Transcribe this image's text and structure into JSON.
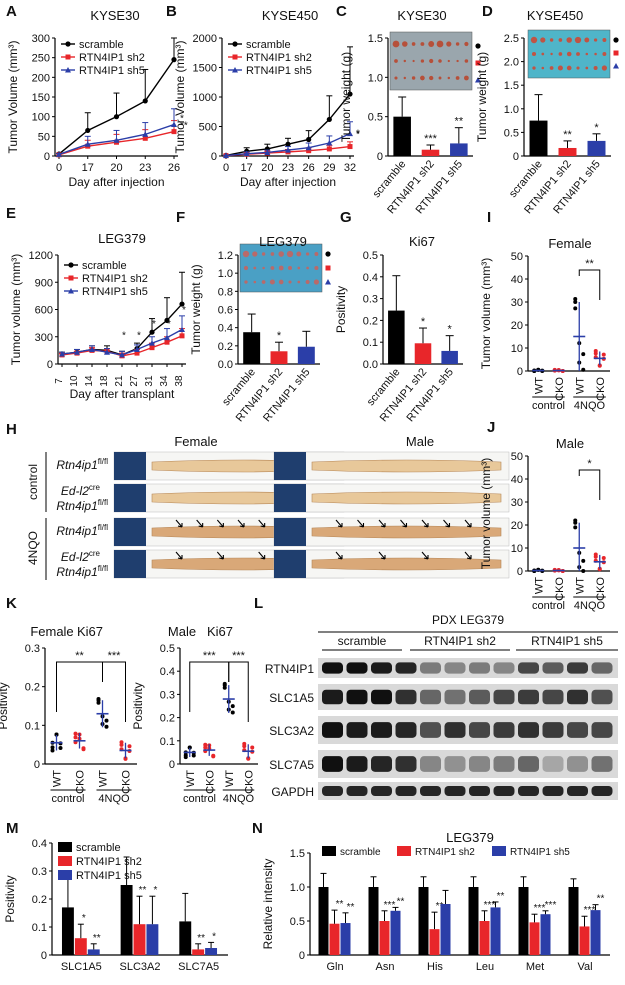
{
  "colors": {
    "black": "#000000",
    "red": "#e8262a",
    "blue": "#2b3ea8",
    "bg_tissue": "#f2f2f2"
  },
  "panels": {
    "A": "A",
    "B": "B",
    "C": "C",
    "D": "D",
    "E": "E",
    "F": "F",
    "G": "G",
    "H": "H",
    "I": "I",
    "J": "J",
    "K": "K",
    "L": "L",
    "M": "M",
    "N": "N"
  },
  "legend": {
    "scramble": "scramble",
    "sh2": "RTN4IP1 sh2",
    "sh5": "RTN4IP1 sh5"
  },
  "h": {
    "female": "Female",
    "male": "Male",
    "control": "control",
    "nqo": "4NQO",
    "flox": "Rtn4ip1",
    "flsup": "fl/fl",
    "edl2": "Ed-l2",
    "cre": "cre"
  },
  "l": {
    "title": "PDX LEG379",
    "groups": [
      "scramble",
      "RTN4IP1 sh2",
      "RTN4IP1 sh5"
    ],
    "proteins": [
      "RTN4IP1",
      "SLC1A5",
      "SLC3A2",
      "SLC7A5",
      "GAPDH"
    ]
  },
  "chart_data": [
    {
      "id": "A",
      "type": "line",
      "title": "KYSE30",
      "xlabel": "Day after injection",
      "ylabel": "Tumor Volume (mm³)",
      "x": [
        0,
        17,
        20,
        23,
        26
      ],
      "ylim": [
        0,
        300
      ],
      "yticks": [
        0,
        50,
        100,
        150,
        200,
        250,
        300
      ],
      "series": [
        {
          "name": "scramble",
          "values": [
            5,
            65,
            100,
            140,
            245
          ],
          "err": [
            2,
            45,
            60,
            80,
            130
          ]
        },
        {
          "name": "RTN4IP1 sh2",
          "values": [
            3,
            25,
            35,
            45,
            62
          ],
          "err": [
            2,
            15,
            20,
            22,
            28
          ]
        },
        {
          "name": "RTN4IP1 sh5",
          "values": [
            4,
            30,
            40,
            55,
            80
          ],
          "err": [
            2,
            20,
            25,
            30,
            40
          ]
        }
      ],
      "stars": [
        "*",
        "**"
      ]
    },
    {
      "id": "B",
      "type": "line",
      "title": "KYSE450",
      "xlabel": "Day after injection",
      "ylabel": "Tumor Volume (mm³)",
      "x": [
        0,
        17,
        20,
        23,
        26,
        29,
        32
      ],
      "ylim": [
        0,
        2000
      ],
      "yticks": [
        0,
        500,
        1000,
        1500,
        2000
      ],
      "series": [
        {
          "name": "scramble",
          "values": [
            10,
            80,
            120,
            200,
            280,
            620,
            1050
          ],
          "err": [
            5,
            60,
            80,
            100,
            150,
            400,
            800
          ]
        },
        {
          "name": "RTN4IP1 sh2",
          "values": [
            5,
            30,
            50,
            70,
            90,
            120,
            160
          ],
          "err": [
            3,
            20,
            30,
            40,
            50,
            60,
            80
          ]
        },
        {
          "name": "RTN4IP1 sh5",
          "values": [
            8,
            40,
            60,
            100,
            140,
            220,
            380
          ],
          "err": [
            4,
            30,
            40,
            60,
            80,
            120,
            200
          ]
        }
      ],
      "stars": [
        "*",
        "*"
      ]
    },
    {
      "id": "C",
      "type": "bar",
      "title": "KYSE30",
      "ylabel": "Tumor weight (g)",
      "ylim": [
        0,
        1.5
      ],
      "yticks": [
        0,
        0.5,
        1.0,
        1.5
      ],
      "categories": [
        "scramble",
        "RTN4IP1 sh2",
        "RTN4IP1 sh5"
      ],
      "values": [
        0.5,
        0.08,
        0.16
      ],
      "err": [
        0.25,
        0.06,
        0.2
      ],
      "stars": [
        "",
        "***",
        "**"
      ]
    },
    {
      "id": "D",
      "type": "bar",
      "title": "KYSE450",
      "ylabel": "Tumor weight (g)",
      "ylim": [
        0,
        2.5
      ],
      "yticks": [
        0,
        0.5,
        1.0,
        1.5,
        2.0,
        2.5
      ],
      "categories": [
        "scramble",
        "RTN4IP1 sh2",
        "RTN4IP1 sh5"
      ],
      "values": [
        0.75,
        0.17,
        0.32
      ],
      "err": [
        0.55,
        0.15,
        0.15
      ],
      "stars": [
        "",
        "**",
        "*"
      ]
    },
    {
      "id": "E",
      "type": "line",
      "title": "LEG379",
      "xlabel": "Day after transplant",
      "ylabel": "Tumor volume (mm³)",
      "x": [
        7,
        10,
        14,
        18,
        21,
        27,
        31,
        34,
        38
      ],
      "ylim": [
        0,
        1200
      ],
      "yticks": [
        0,
        300,
        600,
        900,
        1200
      ],
      "series": [
        {
          "name": "scramble",
          "values": [
            110,
            130,
            160,
            150,
            100,
            170,
            350,
            480,
            660
          ],
          "err": [
            20,
            30,
            40,
            50,
            40,
            60,
            150,
            250,
            350
          ]
        },
        {
          "name": "RTN4IP1 sh2",
          "values": [
            100,
            120,
            150,
            140,
            90,
            120,
            180,
            240,
            310
          ],
          "err": [
            15,
            20,
            30,
            30,
            30,
            40,
            50,
            60,
            80
          ]
        },
        {
          "name": "RTN4IP1 sh5",
          "values": [
            110,
            130,
            160,
            130,
            100,
            160,
            230,
            290,
            380
          ],
          "err": [
            20,
            30,
            40,
            40,
            40,
            50,
            70,
            100,
            150
          ]
        }
      ],
      "stars": [
        "*",
        "*",
        "*",
        "*",
        "*"
      ]
    },
    {
      "id": "F",
      "type": "bar",
      "title": "LEG379",
      "ylabel": "Tumor weight (g)",
      "ylim": [
        0,
        1.2
      ],
      "yticks": [
        0,
        0.2,
        0.4,
        0.6,
        0.8,
        1.0,
        1.2
      ],
      "categories": [
        "scramble",
        "RTN4IP1 sh2",
        "RTN4IP1 sh5"
      ],
      "values": [
        0.35,
        0.14,
        0.19
      ],
      "err": [
        0.2,
        0.1,
        0.17
      ],
      "stars": [
        "",
        "*",
        ""
      ]
    },
    {
      "id": "G",
      "type": "bar",
      "title": "Ki67",
      "ylabel": "Positivity",
      "ylim": [
        0,
        0.5
      ],
      "yticks": [
        0,
        0.1,
        0.2,
        0.3,
        0.4,
        0.5
      ],
      "categories": [
        "scramble",
        "RTN4IP1 sh2",
        "RTN4IP1 sh5"
      ],
      "values": [
        0.245,
        0.095,
        0.06
      ],
      "err": [
        0.16,
        0.07,
        0.07
      ],
      "stars": [
        "",
        "*",
        "*"
      ]
    },
    {
      "id": "I",
      "type": "scatter",
      "title": "Female",
      "ylabel": "Tumor volume (mm³)",
      "ylim": [
        0,
        50
      ],
      "yticks": [
        0,
        10,
        20,
        30,
        40,
        50
      ],
      "categories": [
        "WT",
        "CKO",
        "WT",
        "CKO"
      ],
      "groups": [
        "control",
        "4NQO"
      ],
      "means": [
        0.2,
        0.2,
        15,
        5.5
      ],
      "sd": [
        0.3,
        0.3,
        15,
        3
      ],
      "stars": [
        "**"
      ]
    },
    {
      "id": "J",
      "type": "scatter",
      "title": "Male",
      "ylabel": "Tumor volume (mm³)",
      "ylim": [
        0,
        50
      ],
      "yticks": [
        0,
        10,
        20,
        30,
        40,
        50
      ],
      "categories": [
        "WT",
        "CKO",
        "WT",
        "CKO"
      ],
      "groups": [
        "control",
        "4NQO"
      ],
      "means": [
        0.2,
        0.2,
        10,
        4
      ],
      "sd": [
        0.3,
        0.3,
        11,
        3
      ],
      "stars": [
        "*"
      ]
    },
    {
      "id": "K1",
      "type": "scatter",
      "title": "Ki67",
      "subtitle": "Female",
      "ylabel": "Positivity",
      "ylim": [
        0,
        0.3
      ],
      "yticks": [
        0,
        0.1,
        0.2,
        0.3
      ],
      "categories": [
        "WT",
        "CKO",
        "WT",
        "CKO"
      ],
      "groups": [
        "control",
        "4NQO"
      ],
      "means": [
        0.055,
        0.06,
        0.13,
        0.035
      ],
      "sd": [
        0.02,
        0.02,
        0.035,
        0.02
      ],
      "stars": [
        "**",
        "***"
      ]
    },
    {
      "id": "K2",
      "type": "scatter",
      "title": "Ki67",
      "subtitle": "Male",
      "ylabel": "Positivity",
      "ylim": [
        0,
        0.5
      ],
      "yticks": [
        0,
        0.1,
        0.2,
        0.3,
        0.4,
        0.5
      ],
      "categories": [
        "WT",
        "CKO",
        "WT",
        "CKO"
      ],
      "groups": [
        "control",
        "4NQO"
      ],
      "means": [
        0.05,
        0.06,
        0.28,
        0.055
      ],
      "sd": [
        0.02,
        0.025,
        0.06,
        0.03
      ],
      "stars": [
        "***",
        "***"
      ]
    },
    {
      "id": "M",
      "type": "bar",
      "ylabel": "Positivity",
      "ylim": [
        0,
        0.4
      ],
      "yticks": [
        0,
        0.1,
        0.2,
        0.3,
        0.4
      ],
      "categories": [
        "SLC1A5",
        "SLC3A2",
        "SLC7A5"
      ],
      "series": [
        {
          "name": "scramble",
          "values": [
            0.17,
            0.25,
            0.12
          ],
          "err": [
            0.13,
            0.1,
            0.1
          ]
        },
        {
          "name": "RTN4IP1 sh2",
          "values": [
            0.06,
            0.11,
            0.02
          ],
          "err": [
            0.05,
            0.1,
            0.02
          ]
        },
        {
          "name": "RTN4IP1 sh5",
          "values": [
            0.02,
            0.11,
            0.025
          ],
          "err": [
            0.02,
            0.1,
            0.02
          ]
        }
      ],
      "stars": [
        [
          "*",
          "**"
        ],
        [
          "**",
          "*"
        ],
        [
          "**",
          "*"
        ]
      ]
    },
    {
      "id": "N",
      "type": "bar",
      "title": "LEG379",
      "ylabel": "Relative intensity",
      "ylim": [
        0,
        1.5
      ],
      "yticks": [
        0,
        0.5,
        1.0,
        1.5
      ],
      "categories": [
        "Gln",
        "Asn",
        "His",
        "Leu",
        "Met",
        "Val"
      ],
      "series": [
        {
          "name": "scramble",
          "values": [
            1.0,
            1.0,
            1.0,
            1.0,
            1.0,
            1.0
          ],
          "err": [
            0.2,
            0.15,
            0.15,
            0.15,
            0.15,
            0.12
          ]
        },
        {
          "name": "RTN4IP1 sh2",
          "values": [
            0.46,
            0.5,
            0.38,
            0.5,
            0.48,
            0.42
          ],
          "err": [
            0.2,
            0.15,
            0.25,
            0.15,
            0.12,
            0.15
          ]
        },
        {
          "name": "RTN4IP1 sh5",
          "values": [
            0.47,
            0.65,
            0.75,
            0.7,
            0.6,
            0.66
          ],
          "err": [
            0.15,
            0.05,
            0.2,
            0.08,
            0.05,
            0.08
          ]
        }
      ],
      "stars": [
        [
          "**",
          "**"
        ],
        [
          "***",
          "**"
        ],
        [
          "**",
          ""
        ],
        [
          "***",
          "**"
        ],
        [
          "***",
          "***"
        ],
        [
          "***",
          "**"
        ]
      ]
    }
  ]
}
